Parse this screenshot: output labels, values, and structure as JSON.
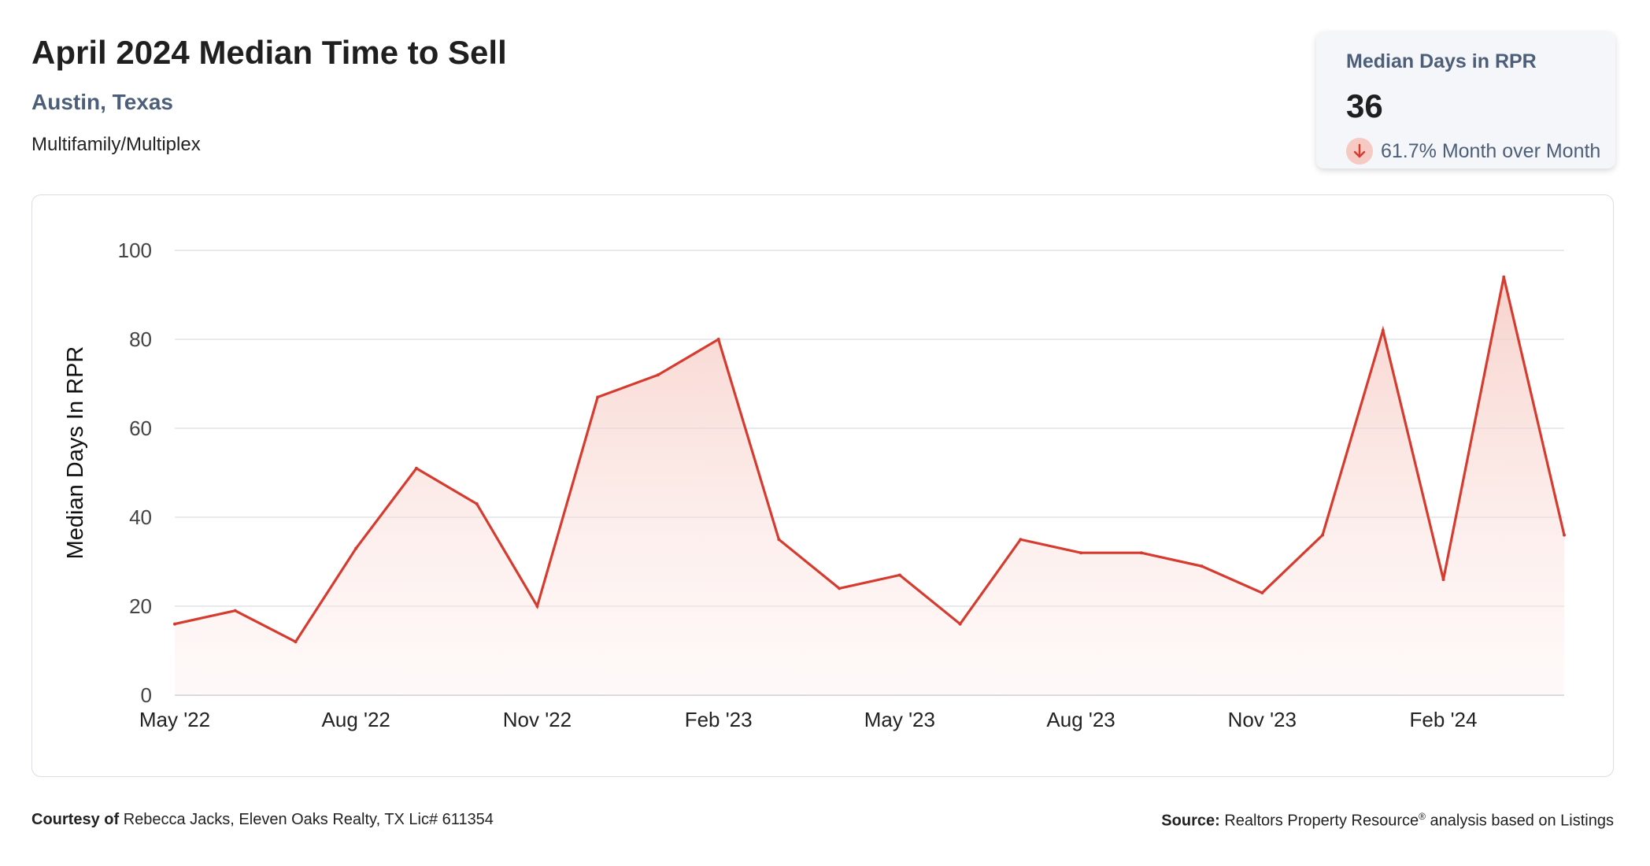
{
  "header": {
    "title": "April 2024 Median Time to Sell",
    "location": "Austin, Texas",
    "property_type": "Multifamily/Multiplex"
  },
  "stat_card": {
    "label": "Median Days in RPR",
    "value": "36",
    "change": "61.7% Month over Month",
    "direction_icon": "arrow-down-icon",
    "direction": "down"
  },
  "footer": {
    "courtesy_label": "Courtesy of",
    "courtesy_text": "Rebecca Jacks, Eleven Oaks Realty, TX Lic# 611354",
    "source_label": "Source:",
    "source_text_1": "Realtors Property Resource",
    "source_reg": "®",
    "source_text_2": " analysis based on Listings"
  },
  "colors": {
    "line": "#d63b2f",
    "fill_top": "#f6cfc9",
    "grid": "#e2e4e8",
    "accent_text": "#4d5f78"
  },
  "chart_data": {
    "type": "area",
    "ylabel": "Median Days In RPR",
    "xlabel": "",
    "ylim": [
      0,
      100
    ],
    "yticks": [
      0,
      20,
      40,
      60,
      80,
      100
    ],
    "xtick_labels": [
      "May '22",
      "Aug '22",
      "Nov '22",
      "Feb '23",
      "May '23",
      "Aug '23",
      "Nov '23",
      "Feb '24"
    ],
    "xtick_indices": [
      0,
      3,
      6,
      9,
      12,
      15,
      18,
      21
    ],
    "grid": true,
    "x": [
      "May '22",
      "Jun '22",
      "Jul '22",
      "Aug '22",
      "Sep '22",
      "Oct '22",
      "Nov '22",
      "Dec '22",
      "Jan '23",
      "Feb '23",
      "Mar '23",
      "Apr '23",
      "May '23",
      "Jun '23",
      "Jul '23",
      "Aug '23",
      "Sep '23",
      "Oct '23",
      "Nov '23",
      "Dec '23",
      "Jan '24",
      "Feb '24",
      "Mar '24",
      "Apr '24"
    ],
    "series": [
      {
        "values": [
          16,
          19,
          12,
          33,
          51,
          43,
          20,
          67,
          72,
          80,
          35,
          24,
          27,
          16,
          35,
          32,
          32,
          29,
          23,
          36,
          82,
          26,
          94,
          36
        ]
      }
    ]
  }
}
